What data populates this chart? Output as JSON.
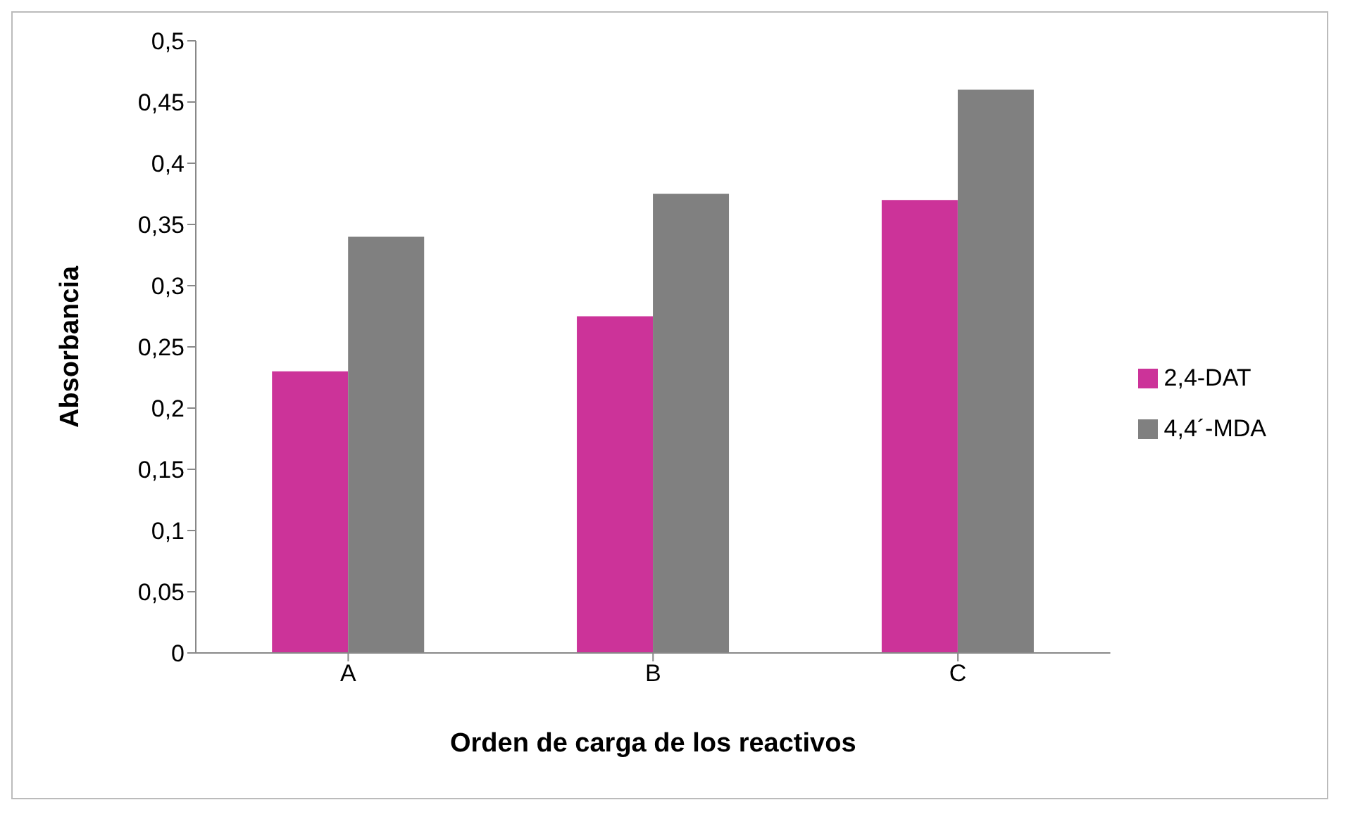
{
  "chart_data": {
    "type": "bar",
    "xlabel": "Orden de carga de los reactivos",
    "ylabel": "Absorbancia",
    "categories": [
      "A",
      "B",
      "C"
    ],
    "series": [
      {
        "name": "2,4-DAT",
        "color": "#cc3399",
        "values": [
          0.23,
          0.275,
          0.37
        ]
      },
      {
        "name": "4,4´-MDA",
        "color": "#808080",
        "values": [
          0.34,
          0.375,
          0.46
        ]
      }
    ],
    "ylim": [
      0,
      0.5
    ],
    "yticks": [
      {
        "value": 0,
        "label": "0"
      },
      {
        "value": 0.05,
        "label": "0,05"
      },
      {
        "value": 0.1,
        "label": "0,1"
      },
      {
        "value": 0.15,
        "label": "0,15"
      },
      {
        "value": 0.2,
        "label": "0,2"
      },
      {
        "value": 0.25,
        "label": "0,25"
      },
      {
        "value": 0.3,
        "label": "0,3"
      },
      {
        "value": 0.35,
        "label": "0,35"
      },
      {
        "value": 0.4,
        "label": "0,4"
      },
      {
        "value": 0.45,
        "label": "0,45"
      },
      {
        "value": 0.5,
        "label": "0,5"
      }
    ],
    "grid": false,
    "legend": "right"
  }
}
